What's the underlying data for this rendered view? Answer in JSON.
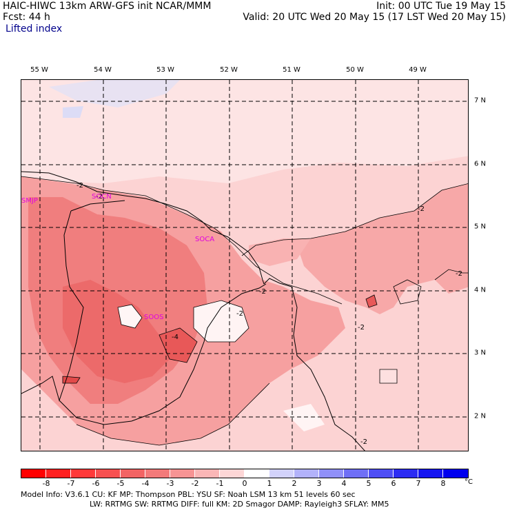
{
  "header": {
    "line1": "HAIC-HIWC 13km ARW-GFS init   NCAR/MMM",
    "line2": "Fcst:   44 h",
    "variable": "Lifted index",
    "init": "Init: 00 UTC Tue 19 May 15",
    "valid": "Valid: 20 UTC Wed 20 May 15 (17 LST Wed 20 May 15)"
  },
  "axes": {
    "lon_labels": [
      "55 W",
      "54 W",
      "53 W",
      "52 W",
      "51 W",
      "50 W",
      "49 W"
    ],
    "lat_labels": [
      "7 N",
      "6 N",
      "5 N",
      "4 N",
      "3 N",
      "2 N"
    ]
  },
  "stations": [
    "SMJP",
    "SOCA",
    "SOOS",
    "SOCN"
  ],
  "contour_labels": [
    "-2",
    "-2",
    "-2",
    "-2",
    "-2",
    "-2",
    "-2",
    "-2",
    "-4"
  ],
  "colorbar": {
    "labels": [
      "-8",
      "-7",
      "-6",
      "-5",
      "-4",
      "-3",
      "-2",
      "-1",
      "0",
      "1",
      "2",
      "3",
      "4",
      "5",
      "6",
      "7",
      "8"
    ],
    "unit": "°C",
    "colors": [
      "#ff0000",
      "#ff2020",
      "#ff3a3a",
      "#f75050",
      "#f26464",
      "#f37a7a",
      "#f79494",
      "#fab6b6",
      "#fdd6d6",
      "#ffffff",
      "#d2d2fb",
      "#b2b2fa",
      "#9090f8",
      "#6f6ff6",
      "#4e4ef5",
      "#2c2cf3",
      "#1515f1",
      "#0000ef"
    ]
  },
  "footer": {
    "line1": "Model Info: V3.6.1    CU: KF      MP: Thompson     PBL: YSU        SF: Noah LSM     13 km    51 levels   60 sec",
    "line2": "LW: RRTMG    SW: RRTMG   DIFF: full    KM: 2D Smagor DAMP: Rayleigh3   SFLAY: MM5"
  },
  "chart_data": {
    "type": "heatmap",
    "field": "Lifted index",
    "unit": "°C",
    "x_range_degW": [
      55.3,
      48.4
    ],
    "y_range_degN": [
      1.6,
      7.4
    ],
    "contour_interval": 2,
    "annotated_values": [
      {
        "lon": -53.9,
        "lat": 5.5,
        "value": -2
      },
      {
        "lon": -52.5,
        "lat": 4.2,
        "value": -2
      },
      {
        "lon": -51.5,
        "lat": 4.0,
        "value": -2
      },
      {
        "lon": -52.0,
        "lat": 3.6,
        "value": -2
      },
      {
        "lon": -49.1,
        "lat": 5.3,
        "value": -2
      },
      {
        "lon": -48.8,
        "lat": 4.3,
        "value": -2
      },
      {
        "lon": -50.1,
        "lat": 3.0,
        "value": -2
      },
      {
        "lon": -50.1,
        "lat": 1.9,
        "value": -2
      },
      {
        "lon": -53.1,
        "lat": 3.2,
        "value": -4
      }
    ]
  }
}
